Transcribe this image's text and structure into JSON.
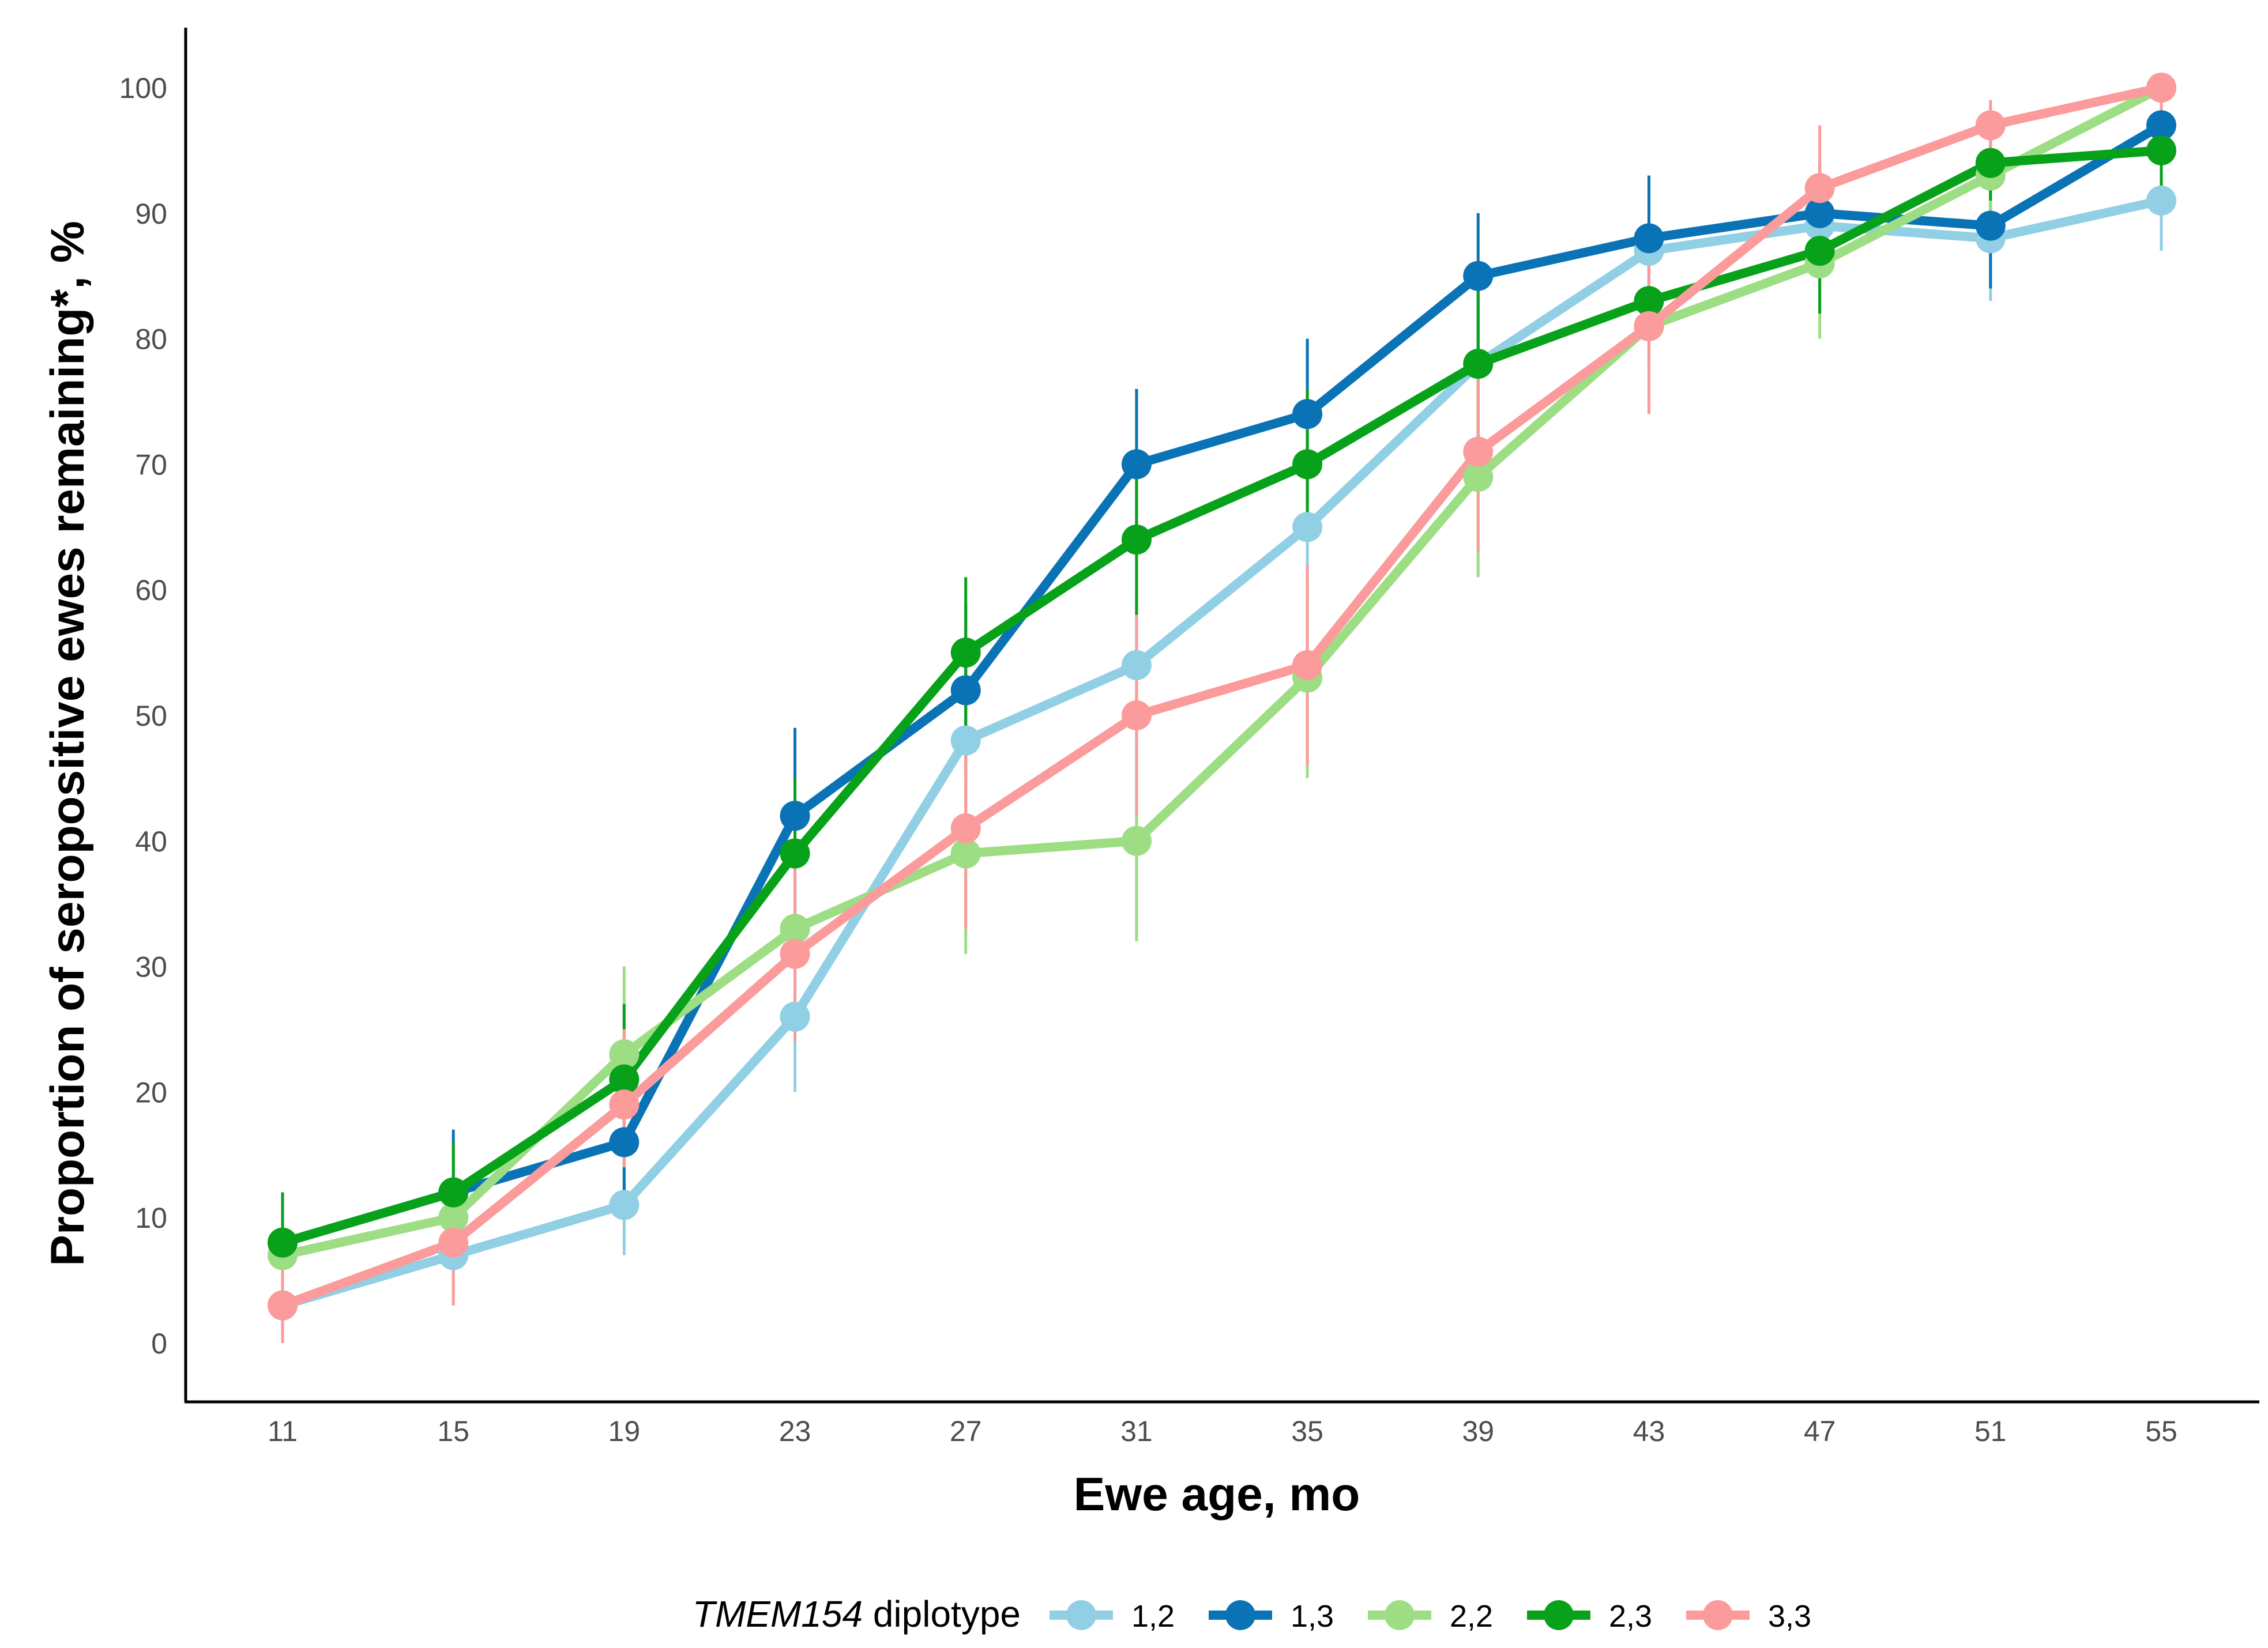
{
  "chart_data": {
    "type": "line",
    "title": "",
    "xlabel": "Ewe age, mo",
    "ylabel": "Proportion of seropositive ewes remaining*, %",
    "x": [
      11,
      15,
      19,
      23,
      27,
      31,
      35,
      39,
      43,
      47,
      51,
      55
    ],
    "x_tick_labels": [
      "11",
      "15",
      "19",
      "23",
      "27",
      "31",
      "35",
      "39",
      "43",
      "47",
      "51",
      "55"
    ],
    "y_ticks": [
      0,
      10,
      20,
      30,
      40,
      50,
      60,
      70,
      80,
      90,
      100
    ],
    "y_tick_labels": [
      "0",
      "10",
      "20",
      "30",
      "40",
      "50",
      "60",
      "70",
      "80",
      "90",
      "100"
    ],
    "ylim": [
      -5,
      105
    ],
    "grid": false,
    "legend": {
      "placement": "bottom",
      "title_italic": "TMEM154",
      "title_rest": " diplotype"
    },
    "series": [
      {
        "name": "1,2",
        "color": "#91cfe4",
        "values": [
          3,
          7,
          11,
          26,
          48,
          54,
          65,
          78,
          87,
          89,
          88,
          91
        ],
        "error_low": [
          0,
          3,
          7,
          20,
          42,
          48,
          59,
          72,
          81,
          84,
          83,
          87
        ],
        "error_high": [
          6,
          12,
          15,
          32,
          54,
          60,
          71,
          84,
          92,
          94,
          92,
          95
        ]
      },
      {
        "name": "1,3",
        "color": "#0a73b6",
        "values": [
          8,
          12,
          16,
          42,
          52,
          70,
          74,
          85,
          88,
          90,
          89,
          97
        ],
        "error_low": [
          4,
          7,
          11,
          35,
          45,
          63,
          67,
          79,
          82,
          85,
          84,
          94
        ],
        "error_high": [
          12,
          17,
          21,
          49,
          59,
          76,
          80,
          90,
          93,
          94,
          93,
          100
        ]
      },
      {
        "name": "2,2",
        "color": "#9ddd83",
        "values": [
          7,
          10,
          23,
          33,
          39,
          40,
          53,
          69,
          81,
          86,
          93,
          100
        ],
        "error_low": [
          3,
          6,
          17,
          27,
          31,
          32,
          45,
          61,
          75,
          80,
          88,
          98
        ],
        "error_high": [
          11,
          15,
          30,
          39,
          47,
          48,
          61,
          77,
          87,
          91,
          97,
          100
        ]
      },
      {
        "name": "2,3",
        "color": "#08a11a",
        "values": [
          8,
          12,
          21,
          39,
          55,
          64,
          70,
          78,
          83,
          87,
          94,
          95
        ],
        "error_low": [
          4,
          7,
          15,
          33,
          49,
          58,
          64,
          72,
          78,
          82,
          91,
          92
        ],
        "error_high": [
          12,
          16,
          27,
          45,
          61,
          70,
          76,
          84,
          88,
          91,
          97,
          98
        ]
      },
      {
        "name": "3,3",
        "color": "#fb9b9b",
        "values": [
          3,
          8,
          19,
          31,
          41,
          50,
          54,
          71,
          81,
          92,
          97,
          100
        ],
        "error_low": [
          0,
          3,
          14,
          24,
          33,
          42,
          46,
          63,
          74,
          87,
          94,
          98
        ],
        "error_high": [
          6,
          13,
          25,
          38,
          49,
          58,
          62,
          79,
          88,
          97,
          99,
          100
        ]
      }
    ]
  }
}
